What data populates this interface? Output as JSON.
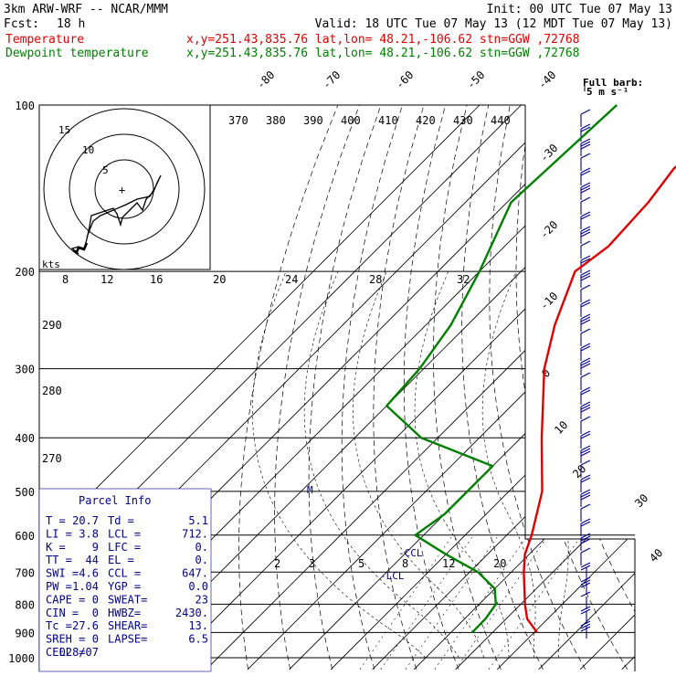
{
  "header": {
    "title": "3km ARW-WRF -- NCAR/MMM",
    "init": "Init: 00 UTC Tue 07 May 13",
    "fcst_label": "Fcst:",
    "fcst_value": "18 h",
    "valid": "Valid: 18 UTC Tue 07 May 13 (12 MDT Tue 07 May 13)",
    "lines": [
      {
        "name": "Temperature",
        "info": "x,y=251.43,835.76   lat,lon= 48.21,-106.62  stn=GGW ,72768",
        "color": "#e00000"
      },
      {
        "name": "Dewpoint temperature",
        "info": "x,y=251.43,835.76   lat,lon= 48.21,-106.62  stn=GGW ,72768",
        "color": "#008000"
      }
    ]
  },
  "barb_legend": {
    "line1": "Full barb:",
    "line2": "5 m s⁻¹"
  },
  "hodograph": {
    "unit": "kts",
    "ring_labels": [
      "5",
      "10",
      "15"
    ],
    "speed_labels": [
      "8",
      "12",
      "16",
      "20",
      "24",
      "28",
      "32"
    ]
  },
  "parcel_info": {
    "title": "Parcel Info",
    "rows": [
      [
        "T  =",
        "20.7",
        "Td =",
        "5.1"
      ],
      [
        "LI =",
        "3.8",
        "LCL =",
        "712."
      ],
      [
        "K  =",
        "9",
        "LFC =",
        "0."
      ],
      [
        "TT =",
        "44",
        "EL  =",
        "0."
      ],
      [
        "SWI =",
        "4.6",
        "CCL =",
        "647."
      ],
      [
        "PW =",
        "1.04",
        "YGP =",
        "0.0"
      ],
      [
        "CAPE =",
        "0",
        "SWEAT=",
        "23"
      ],
      [
        "CIN =",
        "0",
        "HWBZ=",
        "2430."
      ],
      [
        "Tc =",
        "27.6",
        "SHEAR=",
        "13."
      ],
      [
        "SREH =",
        "0",
        "LAPSE=",
        "6.5"
      ],
      [
        "CELL =",
        "028/07",
        "",
        ""
      ]
    ]
  },
  "chart_data": {
    "type": "line",
    "title": "",
    "pressure_ticks": [
      100,
      200,
      300,
      400,
      500,
      600,
      700,
      800,
      900,
      1000
    ],
    "isotherm_labels": [
      -80,
      -70,
      -60,
      -50,
      -40,
      -30,
      -20,
      -10,
      0,
      10,
      20,
      30,
      40
    ],
    "theta_e_labels": [
      370,
      380,
      390,
      400,
      410,
      420,
      430,
      440
    ],
    "theta_labels": [
      290,
      280,
      270
    ],
    "mixing_ratio_labels": [
      2,
      3,
      5,
      8,
      12,
      20
    ],
    "level_labels": [
      "-CCL",
      "-LCL",
      "M"
    ],
    "series": [
      {
        "name": "Temperature",
        "color": "#e00000",
        "points": [
          [
            100,
            -54
          ],
          [
            130,
            -58
          ],
          [
            150,
            -56
          ],
          [
            180,
            -55
          ],
          [
            200,
            -57
          ],
          [
            250,
            -49
          ],
          [
            300,
            -41
          ],
          [
            400,
            -25
          ],
          [
            500,
            -12
          ],
          [
            600,
            -4
          ],
          [
            650,
            -1
          ],
          [
            700,
            3
          ],
          [
            800,
            11
          ],
          [
            850,
            15
          ],
          [
            900,
            20.7
          ]
        ]
      },
      {
        "name": "Dewpoint temperature",
        "color": "#008000",
        "points": [
          [
            100,
            -87
          ],
          [
            150,
            -89
          ],
          [
            200,
            -80
          ],
          [
            250,
            -74
          ],
          [
            300,
            -71
          ],
          [
            350,
            -70
          ],
          [
            400,
            -54
          ],
          [
            450,
            -30
          ],
          [
            500,
            -30
          ],
          [
            550,
            -30
          ],
          [
            600,
            -32
          ],
          [
            650,
            -20
          ],
          [
            700,
            -8
          ],
          [
            750,
            0
          ],
          [
            800,
            4
          ],
          [
            850,
            5
          ],
          [
            900,
            5.1
          ]
        ]
      }
    ]
  }
}
